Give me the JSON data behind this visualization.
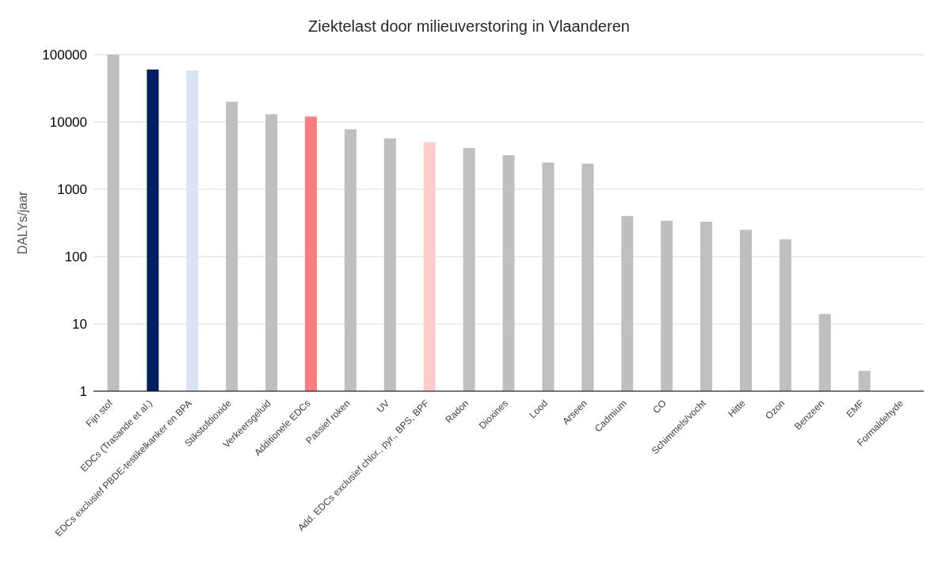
{
  "chart_data": {
    "type": "bar",
    "title": "Ziektelast door milieuverstoring in Vlaanderen",
    "ylabel": "DALYs/jaar",
    "categories": [
      "Fijn stof",
      "EDCs (Trasande et al.)",
      "EDCs exclusief PBDE-testikelkanker en BPA",
      "Stikstofdioxide",
      "Verkeersgeluid",
      "Additionele EDCs",
      "Passief roken",
      "UV",
      "Add. EDCs exclusief chlor., pyr., BPS, BPF",
      "Radon",
      "Dioxines",
      "Lood",
      "Arseen",
      "Cadmium",
      "CO",
      "Schimmels/vocht",
      "Hitte",
      "Ozon",
      "Benzeen",
      "EMF",
      "Formaldehyde"
    ],
    "values": [
      100000,
      60000,
      58000,
      20000,
      13000,
      12000,
      7800,
      5700,
      5000,
      4100,
      3200,
      2500,
      2400,
      400,
      340,
      330,
      250,
      180,
      14,
      2,
      null
    ],
    "colors": [
      "#bfbfbf",
      "#002060",
      "#dae3f3",
      "#bfbfbf",
      "#bfbfbf",
      "#ff7c80",
      "#bfbfbf",
      "#bfbfbf",
      "#ffcccc",
      "#bfbfbf",
      "#bfbfbf",
      "#bfbfbf",
      "#bfbfbf",
      "#bfbfbf",
      "#bfbfbf",
      "#bfbfbf",
      "#bfbfbf",
      "#bfbfbf",
      "#bfbfbf",
      "#bfbfbf",
      "#bfbfbf"
    ],
    "log": true,
    "ylim": [
      1,
      100000
    ],
    "yticks": [
      1,
      10,
      100,
      1000,
      10000,
      100000
    ],
    "grid": "y",
    "legend": false
  }
}
